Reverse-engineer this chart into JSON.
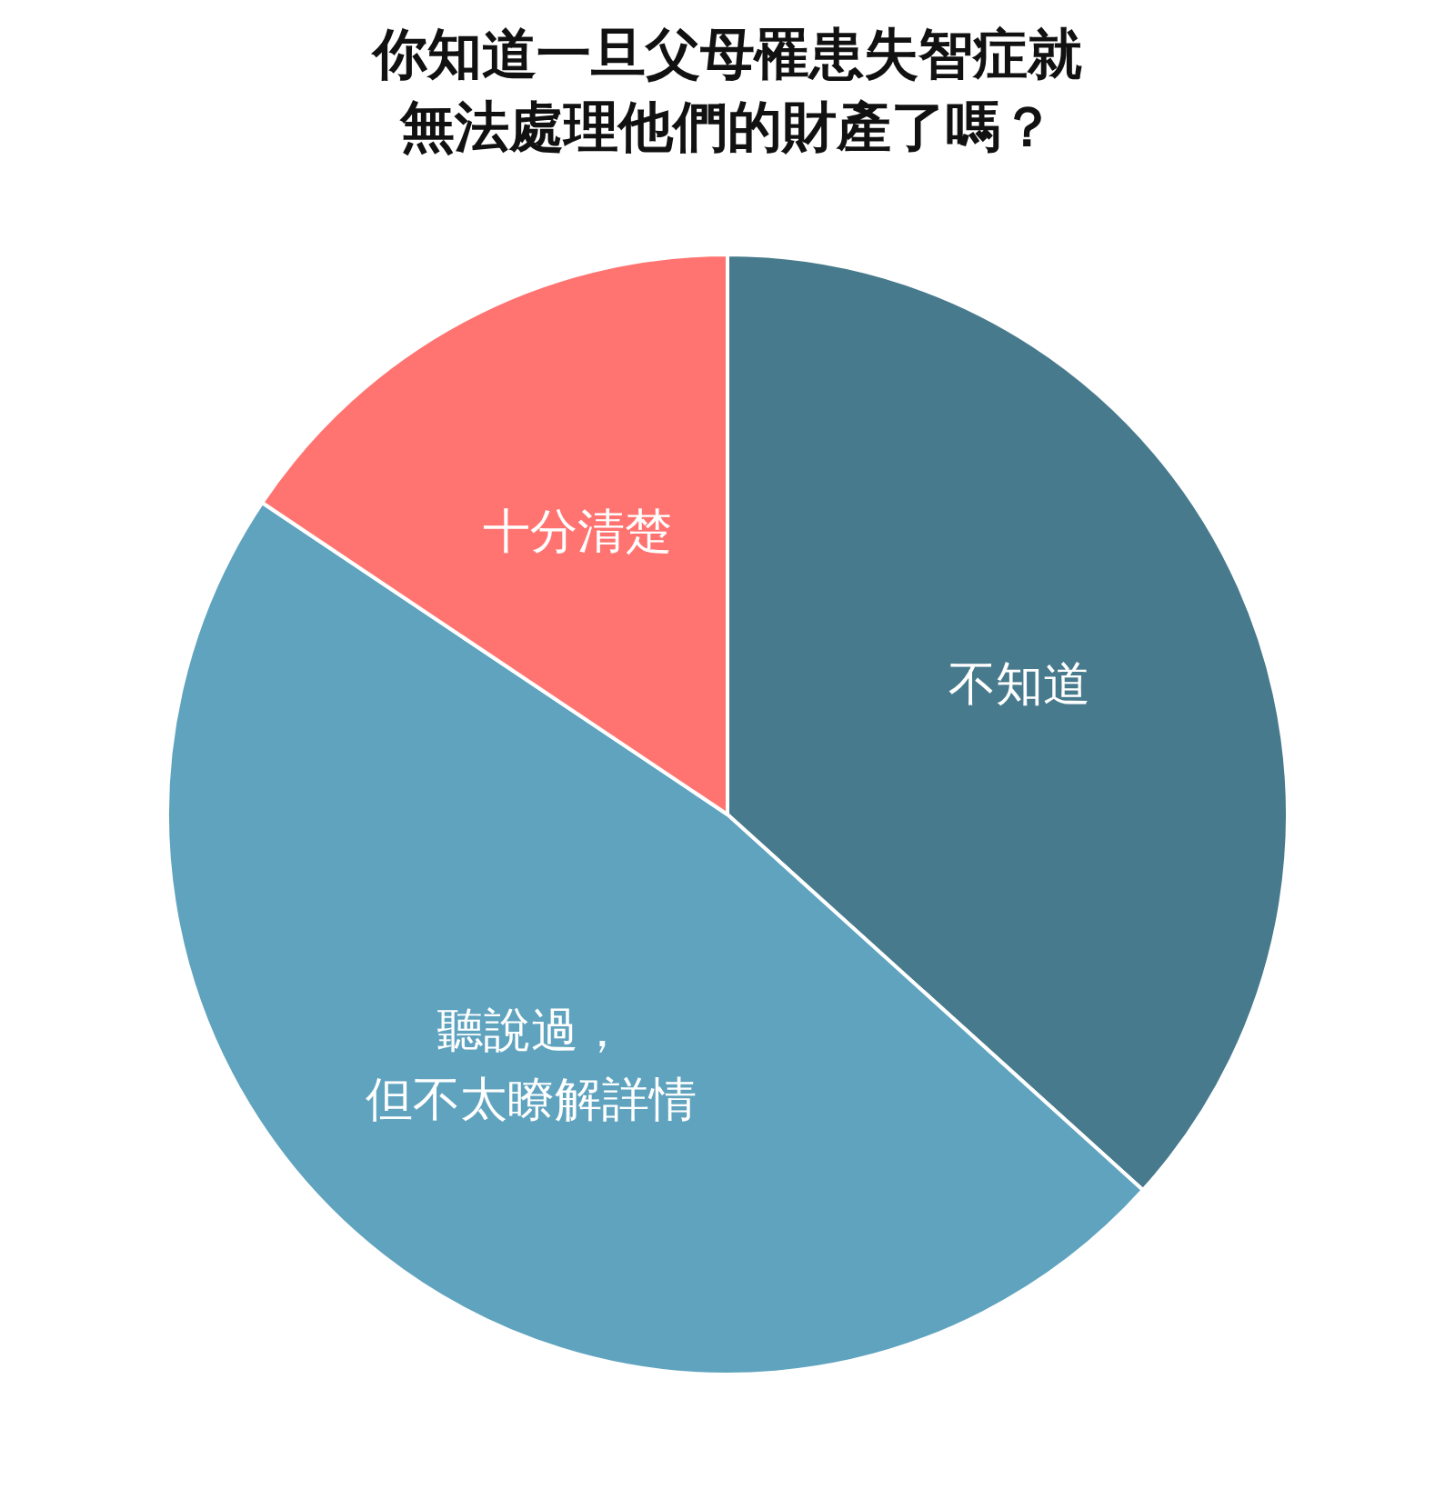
{
  "chart_data": {
    "type": "pie",
    "title": "你知道一旦父母罹患失智症就無法處理他們的財產了嗎？",
    "categories": [
      "不知道",
      "聽說過，但不太瞭解詳情",
      "十分清楚"
    ],
    "values": [
      36.7,
      47.7,
      15.6
    ],
    "colors": [
      "#477a8c",
      "#5fa3bf",
      "#ff7471"
    ]
  }
}
